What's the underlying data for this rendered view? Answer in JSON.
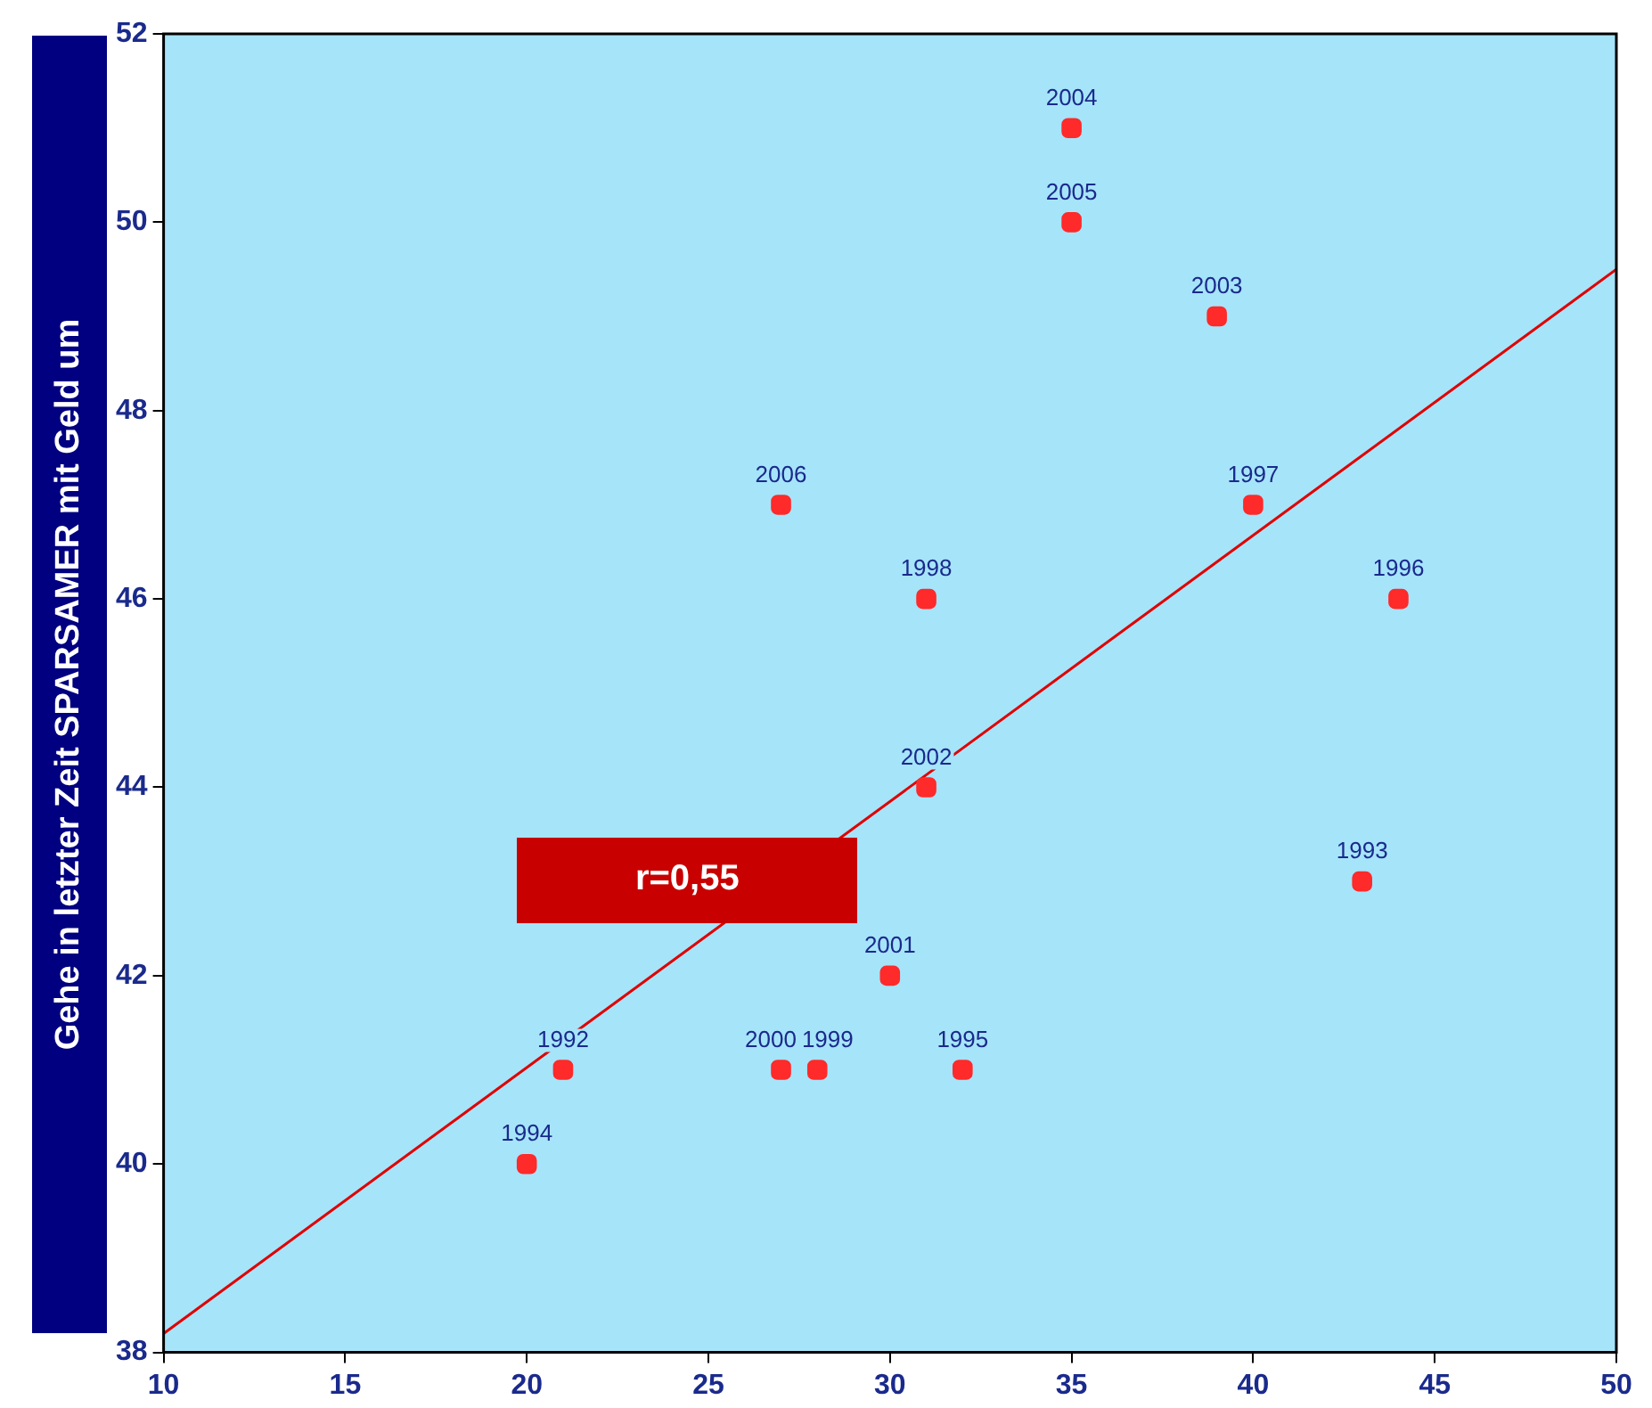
{
  "chart_data": {
    "type": "scatter",
    "ylabel": "Gehe in letzter Zeit SPARSAMER mit Geld um",
    "xlim": [
      10,
      50
    ],
    "ylim": [
      38,
      52
    ],
    "xticks": [
      10,
      15,
      20,
      25,
      30,
      35,
      40,
      45,
      50
    ],
    "yticks": [
      38,
      40,
      42,
      44,
      46,
      48,
      50,
      52
    ],
    "grid": false,
    "legend": false,
    "marker": "square",
    "series": [
      {
        "color": "#ff2a2a",
        "x": [
          21,
          43,
          20,
          32,
          44,
          40,
          31,
          28,
          27,
          30,
          31,
          39,
          35,
          35,
          27
        ],
        "values": [
          41,
          43,
          40,
          41,
          46,
          47,
          46,
          41,
          41,
          42,
          44,
          49,
          51,
          50,
          47
        ]
      },
      {
        "type": "line",
        "color": "#e00000",
        "marker": "none",
        "x": [
          10,
          50
        ],
        "values": [
          38.2,
          49.5
        ]
      }
    ],
    "annotations": [
      "r=0,55",
      {
        "text": "1992",
        "x": 21,
        "y": 41
      },
      {
        "text": "1993",
        "x": 43,
        "y": 43
      },
      {
        "text": "1994",
        "x": 20,
        "y": 40
      },
      {
        "text": "1995",
        "x": 32,
        "y": 41
      },
      {
        "text": "1996",
        "x": 44,
        "y": 46
      },
      {
        "text": "1997",
        "x": 40,
        "y": 47
      },
      {
        "text": "1998",
        "x": 31,
        "y": 46
      },
      {
        "text": "1999",
        "x": 28,
        "y": 41
      },
      {
        "text": "2000",
        "x": 27,
        "y": 41
      },
      {
        "text": "2001",
        "x": 30,
        "y": 42
      },
      {
        "text": "2002",
        "x": 31,
        "y": 44
      },
      {
        "text": "2003",
        "x": 39,
        "y": 49
      },
      {
        "text": "2004",
        "x": 35,
        "y": 51
      },
      {
        "text": "2005",
        "x": 35,
        "y": 50
      },
      {
        "text": "2006",
        "x": 27,
        "y": 47
      }
    ]
  }
}
